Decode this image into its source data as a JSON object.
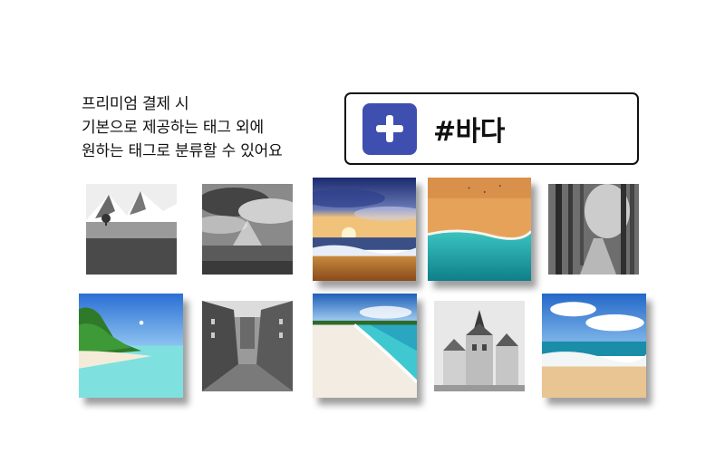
{
  "description": {
    "line1": "프리미엄 결제 시",
    "line2": "기본으로 제공하는 태그 외에",
    "line3": "원하는 태그로 분류할 수 있어요"
  },
  "tag_input": {
    "add_icon": "plus-icon",
    "value": "#바다"
  },
  "colors": {
    "accent": "#3f4fb0",
    "border": "#111111",
    "text": "#111111"
  },
  "gallery": {
    "row1": [
      {
        "subject": "mountain-meadow",
        "color": "grayscale",
        "selected": false
      },
      {
        "subject": "cloudy-valley",
        "color": "grayscale",
        "selected": false
      },
      {
        "subject": "sunset-ocean",
        "color": "color",
        "selected": true
      },
      {
        "subject": "aerial-beach",
        "color": "color",
        "selected": true
      },
      {
        "subject": "forest-path",
        "color": "grayscale",
        "selected": false
      }
    ],
    "row2": [
      {
        "subject": "tropical-beach",
        "color": "color",
        "selected": true
      },
      {
        "subject": "old-town-street",
        "color": "grayscale",
        "selected": false
      },
      {
        "subject": "white-sand-beach",
        "color": "color",
        "selected": true
      },
      {
        "subject": "town-hall",
        "color": "grayscale",
        "selected": false
      },
      {
        "subject": "surf-beach",
        "color": "color",
        "selected": true
      }
    ]
  }
}
